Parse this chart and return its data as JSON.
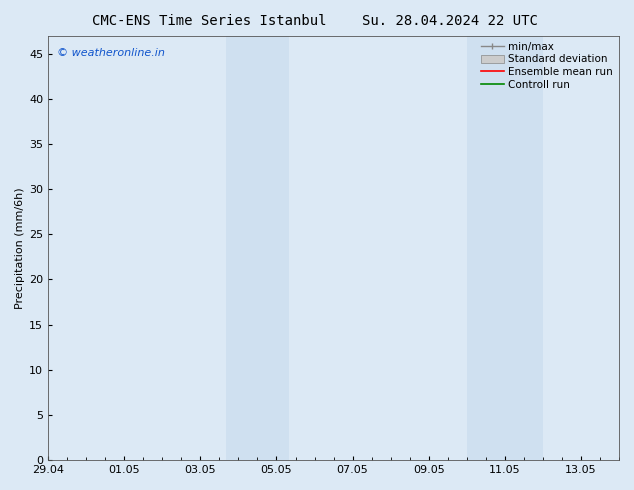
{
  "title_left": "CMC-ENS Time Series Istanbul",
  "title_right": "Su. 28.04.2024 22 UTC",
  "ylabel": "Precipitation (mm/6h)",
  "ylim": [
    0,
    47
  ],
  "yticks": [
    0,
    5,
    10,
    15,
    20,
    25,
    30,
    35,
    40,
    45
  ],
  "xlim": [
    0,
    15
  ],
  "xtick_labels": [
    "29.04",
    "01.05",
    "03.05",
    "05.05",
    "07.05",
    "09.05",
    "11.05",
    "13.05"
  ],
  "xtick_positions": [
    0,
    2,
    4,
    6,
    8,
    10,
    12,
    14
  ],
  "background_color": "#dce9f5",
  "plot_bg_color": "#dce9f5",
  "shade_color": "#cfe0f0",
  "shade_regions": [
    {
      "xmin": 4.67,
      "xmax": 6.33
    },
    {
      "xmin": 11.0,
      "xmax": 13.0
    }
  ],
  "watermark_text": "© weatheronline.in",
  "watermark_color": "#1155cc",
  "legend_labels": [
    "min/max",
    "Standard deviation",
    "Ensemble mean run",
    "Controll run"
  ],
  "legend_line_color_minmax": "#888888",
  "legend_fill_color_std": "#cccccc",
  "legend_line_color_ens": "#ff0000",
  "legend_line_color_ctrl": "#008800",
  "grid_color": "#bbbbbb",
  "spine_color": "#555555",
  "title_fontsize": 10,
  "label_fontsize": 8,
  "tick_fontsize": 8,
  "legend_fontsize": 7.5
}
